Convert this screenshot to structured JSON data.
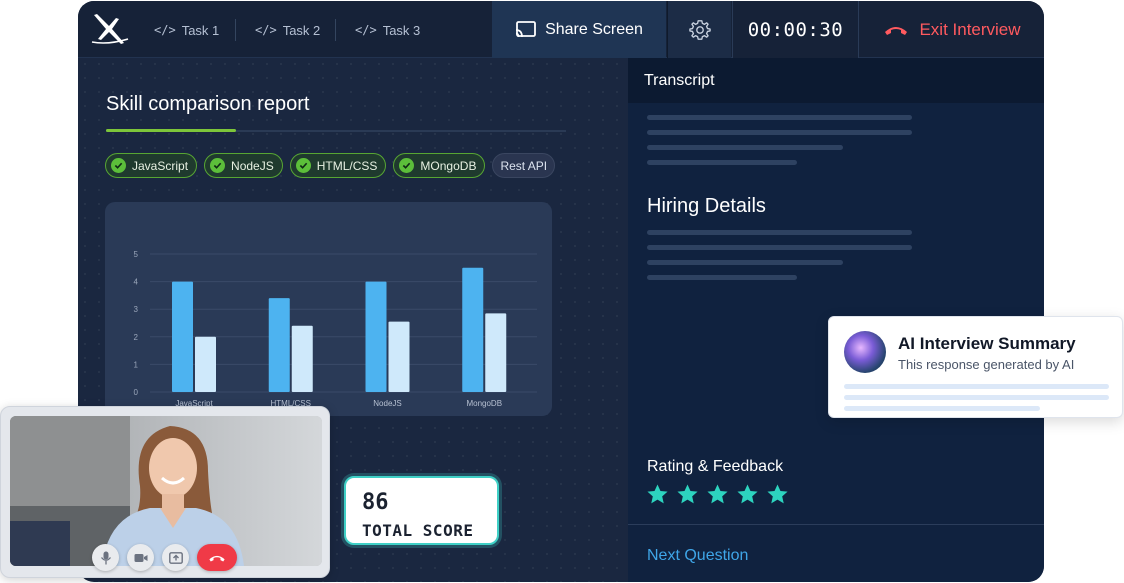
{
  "topbar": {
    "tasks": [
      {
        "icon": "code-icon",
        "label": "Task 1"
      },
      {
        "icon": "code-icon",
        "label": "Task 2"
      },
      {
        "icon": "code-icon",
        "label": "Task 3"
      }
    ],
    "share_label": "Share Screen",
    "timer": "00:00:30",
    "exit_label": "Exit Interview"
  },
  "report": {
    "title": "Skill comparison report",
    "chips": [
      {
        "label": "JavaScript",
        "checked": true
      },
      {
        "label": "NodeJS",
        "checked": true
      },
      {
        "label": "HTML/CSS",
        "checked": true
      },
      {
        "label": "MOngoDB",
        "checked": true
      },
      {
        "label": "Rest API",
        "checked": false
      }
    ]
  },
  "chart_data": {
    "type": "bar",
    "categories": [
      "JavaScript",
      "HTML/CSS",
      "NodeJS",
      "MongoDB"
    ],
    "series": [
      {
        "values": [
          4,
          3.4,
          4,
          4.5
        ]
      },
      {
        "values": [
          2,
          2.4,
          2.55,
          2.85
        ]
      }
    ],
    "ylim": [
      0,
      5
    ],
    "yticks": [
      "0",
      "1",
      "2",
      "3",
      "4",
      "5"
    ],
    "grid": true,
    "colors": [
      "#4db3f0",
      "#cfe9fb"
    ]
  },
  "score": {
    "value": "86",
    "label": "TOTAL SCORE"
  },
  "right_panel": {
    "transcript_label": "Transcript",
    "hiring_title": "Hiring Details",
    "rating_label": "Rating & Feedback",
    "rating": 5,
    "rating_max": 5,
    "next_label": "Next Question"
  },
  "ai_summary": {
    "title": "AI Interview Summary",
    "subtitle": "This response generated by AI"
  },
  "colors": {
    "accent_green": "#7dc63a",
    "star_teal": "#2dd4bf",
    "exit_red": "#ff5a5f",
    "link_blue": "#3fa6e8"
  }
}
